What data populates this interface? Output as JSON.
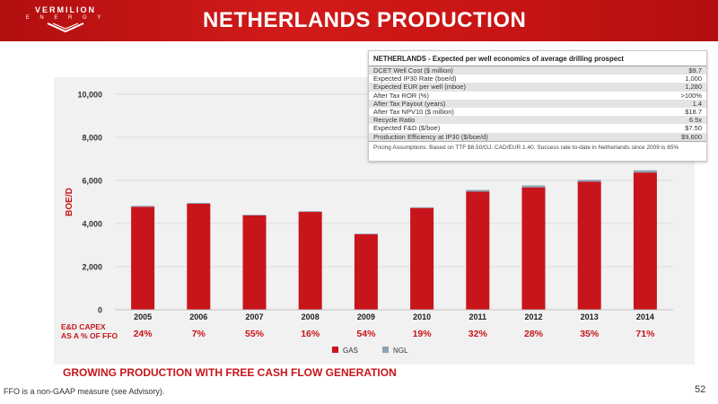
{
  "header": {
    "logo_line1": "VERMILION",
    "logo_line2": "E N E R G Y",
    "title": "NETHERLANDS PRODUCTION"
  },
  "economics_table": {
    "title": "NETHERLANDS - Expected per well economics of average drilling prospect",
    "rows": [
      {
        "label": "DCET Well Cost ($ million)",
        "value": "$9.7"
      },
      {
        "label": "Expected IP30 Rate (boe/d)",
        "value": "1,000"
      },
      {
        "label": "Expected EUR per well (mboe)",
        "value": "1,280"
      },
      {
        "label": "After Tax ROR (%)",
        "value": ">100%"
      },
      {
        "label": "After Tax Payout (years)",
        "value": "1.4"
      },
      {
        "label": "After Tax NPV10 ($ million)",
        "value": "$18.7"
      },
      {
        "label": "Recycle Ratio",
        "value": "6.5x"
      },
      {
        "label": "Expected F&D ($/boe)",
        "value": "$7.50"
      },
      {
        "label": "Production Efficiency at IP30 ($/boe/d)",
        "value": "$9,600"
      }
    ],
    "note": "Pricing Assumptions:  Based on TTF $8.50/GJ.  CAD/EUR 1.40.  Success rate to-date in Netherlands since 2009 is 65%"
  },
  "capex_row": {
    "label_line1": "E&D CAPEX",
    "label_line2": "AS A % OF FFO",
    "values": [
      "24%",
      "7%",
      "55%",
      "16%",
      "54%",
      "19%",
      "32%",
      "28%",
      "35%",
      "71%"
    ]
  },
  "chart_data": {
    "type": "bar",
    "stacked": true,
    "categories": [
      "2005",
      "2006",
      "2007",
      "2008",
      "2009",
      "2010",
      "2011",
      "2012",
      "2013",
      "2014"
    ],
    "series": [
      {
        "name": "GAS",
        "values": [
          4780,
          4920,
          4380,
          4540,
          3500,
          4720,
          5480,
          5680,
          5950,
          6370
        ],
        "color": "#c8151b"
      },
      {
        "name": "NGL",
        "values": [
          40,
          40,
          30,
          30,
          30,
          40,
          80,
          90,
          80,
          100
        ],
        "color": "#8aa2b4"
      }
    ],
    "ylabel": "BOE/D",
    "ylim": [
      0,
      10000
    ],
    "yticks": [
      "0",
      "2,000",
      "4,000",
      "6,000",
      "8,000",
      "10,000"
    ],
    "grid": true,
    "legend_position": "bottom-center"
  },
  "subtitle": "GROWING PRODUCTION WITH FREE CASH FLOW GENERATION",
  "footnote": "FFO is a non-GAAP measure (see Advisory).",
  "page_number": "52"
}
